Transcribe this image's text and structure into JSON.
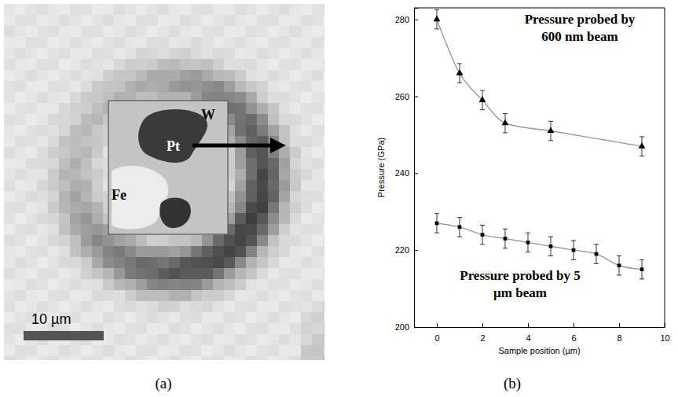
{
  "panel_labels": [
    "(a)",
    "(b)"
  ],
  "image_panel": {
    "labels": [
      "W",
      "Pt",
      "Fe"
    ],
    "scale_bar_label": "10 µm"
  },
  "chart_data": {
    "type": "line",
    "x_label": "Sample position (µm)",
    "y_label": "Pressure (GPa)",
    "xlim": [
      -1,
      10
    ],
    "xticks": [
      0,
      2,
      4,
      6,
      8,
      10
    ],
    "ylim": [
      200,
      283
    ],
    "yticks": [
      200,
      220,
      240,
      260,
      280
    ],
    "series": [
      {
        "name": "Pressure probed by 600 nm beam",
        "color": "#000000",
        "marker": "triangle",
        "x": [
          0,
          1,
          2,
          3,
          5,
          9
        ],
        "values": [
          280,
          266,
          259,
          253,
          251,
          247
        ],
        "errors": [
          2.5,
          2.5,
          2.5,
          2.5,
          2.5,
          2.5
        ]
      },
      {
        "name": "Pressure probed by 5 µm beam",
        "color": "#000000",
        "marker": "square",
        "x": [
          0,
          1,
          2,
          3,
          4,
          5,
          6,
          7,
          8,
          9
        ],
        "values": [
          227,
          226,
          224,
          223,
          222,
          221,
          220,
          219,
          216,
          215
        ],
        "errors": [
          2.5,
          2.5,
          2.5,
          2.5,
          2.5,
          2.5,
          2.5,
          2.5,
          2.5,
          2.5
        ]
      }
    ]
  }
}
